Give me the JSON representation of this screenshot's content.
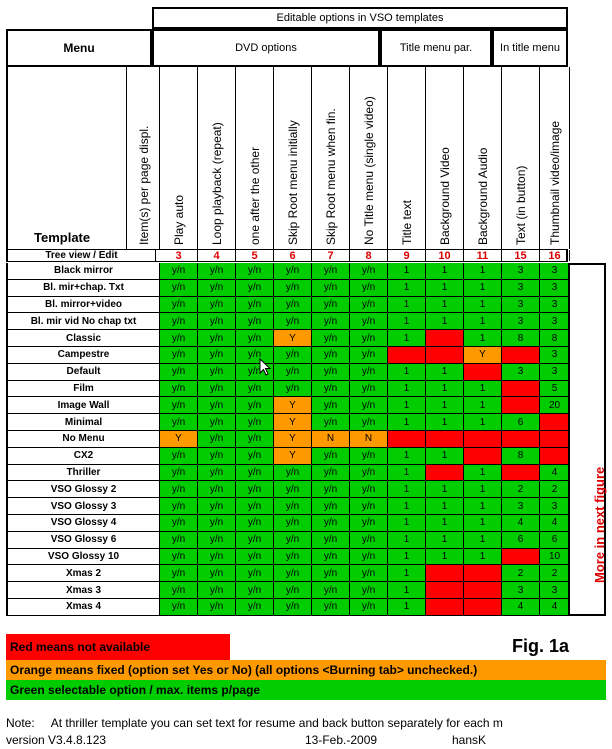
{
  "header": {
    "editable_title": "Editable options in VSO templates",
    "menu_label": "Menu",
    "dvd_options": "DVD options",
    "title_menu_par": "Title menu par.",
    "in_title_menu": "In title menu",
    "template_label": "Template",
    "tree_view_label": "Tree view / Edit",
    "side_note": "More in next figure"
  },
  "columns": [
    {
      "label": "Item(s) per page displ.",
      "num": ""
    },
    {
      "label": "Play auto",
      "num": "3"
    },
    {
      "label": "Loop playback (repeat)",
      "num": "4"
    },
    {
      "label": "one after the other",
      "num": "5"
    },
    {
      "label": "Skip Root menu initially",
      "num": "6"
    },
    {
      "label": "Skip Root menu when fin.",
      "num": "7"
    },
    {
      "label": "No Title menu (single video)",
      "num": "8"
    },
    {
      "label": "Title text",
      "num": "9"
    },
    {
      "label": "Background Video",
      "num": "10"
    },
    {
      "label": "Background Audio",
      "num": "11"
    },
    {
      "label": "Text (in button)",
      "num": "15"
    },
    {
      "label": "Thumbnail video/image",
      "num": "16"
    }
  ],
  "rows": [
    {
      "name": "Black mirror",
      "cells": [
        [
          "g",
          "y/n"
        ],
        [
          "g",
          "y/n"
        ],
        [
          "g",
          "y/n"
        ],
        [
          "g",
          "y/n"
        ],
        [
          "g",
          "y/n"
        ],
        [
          "g",
          "y/n"
        ],
        [
          "g",
          "1"
        ],
        [
          "g",
          "1"
        ],
        [
          "g",
          "1"
        ],
        [
          "g",
          "3"
        ],
        [
          "g",
          "3"
        ]
      ]
    },
    {
      "name": "Bl. mir+chap. Txt",
      "cells": [
        [
          "g",
          "y/n"
        ],
        [
          "g",
          "y/n"
        ],
        [
          "g",
          "y/n"
        ],
        [
          "g",
          "y/n"
        ],
        [
          "g",
          "y/n"
        ],
        [
          "g",
          "y/n"
        ],
        [
          "g",
          "1"
        ],
        [
          "g",
          "1"
        ],
        [
          "g",
          "1"
        ],
        [
          "g",
          "3"
        ],
        [
          "g",
          "3"
        ]
      ]
    },
    {
      "name": "Bl. mirror+video",
      "cells": [
        [
          "g",
          "y/n"
        ],
        [
          "g",
          "y/n"
        ],
        [
          "g",
          "y/n"
        ],
        [
          "g",
          "y/n"
        ],
        [
          "g",
          "y/n"
        ],
        [
          "g",
          "y/n"
        ],
        [
          "g",
          "1"
        ],
        [
          "g",
          "1"
        ],
        [
          "g",
          "1"
        ],
        [
          "g",
          "3"
        ],
        [
          "g",
          "3"
        ]
      ]
    },
    {
      "name": "Bl. mir vid No chap txt",
      "cells": [
        [
          "g",
          "y/n"
        ],
        [
          "g",
          "y/n"
        ],
        [
          "g",
          "y/n"
        ],
        [
          "g",
          "y/n"
        ],
        [
          "g",
          "y/n"
        ],
        [
          "g",
          "y/n"
        ],
        [
          "g",
          "1"
        ],
        [
          "g",
          "1"
        ],
        [
          "g",
          "1"
        ],
        [
          "g",
          "3"
        ],
        [
          "g",
          "3"
        ]
      ]
    },
    {
      "name": "Classic",
      "cells": [
        [
          "g",
          "y/n"
        ],
        [
          "g",
          "y/n"
        ],
        [
          "g",
          "y/n"
        ],
        [
          "o",
          "Y"
        ],
        [
          "g",
          "y/n"
        ],
        [
          "g",
          "y/n"
        ],
        [
          "g",
          "1"
        ],
        [
          "r",
          ""
        ],
        [
          "g",
          "1"
        ],
        [
          "g",
          "8"
        ],
        [
          "g",
          "8"
        ]
      ]
    },
    {
      "name": "Campestre",
      "cells": [
        [
          "g",
          "y/n"
        ],
        [
          "g",
          "y/n"
        ],
        [
          "g",
          "y/n"
        ],
        [
          "g",
          "y/n"
        ],
        [
          "g",
          "y/n"
        ],
        [
          "g",
          "y/n"
        ],
        [
          "r",
          ""
        ],
        [
          "r",
          ""
        ],
        [
          "o",
          "Y"
        ],
        [
          "r",
          ""
        ],
        [
          "g",
          "3"
        ]
      ]
    },
    {
      "name": "Default",
      "cells": [
        [
          "g",
          "y/n"
        ],
        [
          "g",
          "y/n"
        ],
        [
          "g",
          "y/n"
        ],
        [
          "g",
          "y/n"
        ],
        [
          "g",
          "y/n"
        ],
        [
          "g",
          "y/n"
        ],
        [
          "g",
          "1"
        ],
        [
          "g",
          "1"
        ],
        [
          "r",
          ""
        ],
        [
          "g",
          "3"
        ],
        [
          "g",
          "3"
        ]
      ]
    },
    {
      "name": "Film",
      "cells": [
        [
          "g",
          "y/n"
        ],
        [
          "g",
          "y/n"
        ],
        [
          "g",
          "y/n"
        ],
        [
          "g",
          "y/n"
        ],
        [
          "g",
          "y/n"
        ],
        [
          "g",
          "y/n"
        ],
        [
          "g",
          "1"
        ],
        [
          "g",
          "1"
        ],
        [
          "g",
          "1"
        ],
        [
          "r",
          ""
        ],
        [
          "g",
          "5"
        ]
      ]
    },
    {
      "name": "Image Wall",
      "cells": [
        [
          "g",
          "y/n"
        ],
        [
          "g",
          "y/n"
        ],
        [
          "g",
          "y/n"
        ],
        [
          "o",
          "Y"
        ],
        [
          "g",
          "y/n"
        ],
        [
          "g",
          "y/n"
        ],
        [
          "g",
          "1"
        ],
        [
          "g",
          "1"
        ],
        [
          "g",
          "1"
        ],
        [
          "r",
          ""
        ],
        [
          "g",
          "20"
        ]
      ]
    },
    {
      "name": "Minimal",
      "cells": [
        [
          "g",
          "y/n"
        ],
        [
          "g",
          "y/n"
        ],
        [
          "g",
          "y/n"
        ],
        [
          "o",
          "Y"
        ],
        [
          "g",
          "y/n"
        ],
        [
          "g",
          "y/n"
        ],
        [
          "g",
          "1"
        ],
        [
          "g",
          "1"
        ],
        [
          "g",
          "1"
        ],
        [
          "g",
          "6"
        ],
        [
          "r",
          ""
        ]
      ]
    },
    {
      "name": "No Menu",
      "cells": [
        [
          "o",
          "Y"
        ],
        [
          "g",
          "y/n"
        ],
        [
          "g",
          "y/n"
        ],
        [
          "o",
          "Y"
        ],
        [
          "o",
          "N"
        ],
        [
          "o",
          "N"
        ],
        [
          "r",
          ""
        ],
        [
          "r",
          ""
        ],
        [
          "r",
          ""
        ],
        [
          "r",
          ""
        ],
        [
          "r",
          ""
        ]
      ]
    },
    {
      "name": "CX2",
      "cells": [
        [
          "g",
          "y/n"
        ],
        [
          "g",
          "y/n"
        ],
        [
          "g",
          "y/n"
        ],
        [
          "o",
          "Y"
        ],
        [
          "g",
          "y/n"
        ],
        [
          "g",
          "y/n"
        ],
        [
          "g",
          "1"
        ],
        [
          "g",
          "1"
        ],
        [
          "r",
          ""
        ],
        [
          "g",
          "8"
        ],
        [
          "r",
          ""
        ]
      ]
    },
    {
      "name": "Thriller",
      "cells": [
        [
          "g",
          "y/n"
        ],
        [
          "g",
          "y/n"
        ],
        [
          "g",
          "y/n"
        ],
        [
          "g",
          "y/n"
        ],
        [
          "g",
          "y/n"
        ],
        [
          "g",
          "y/n"
        ],
        [
          "g",
          "1"
        ],
        [
          "r",
          ""
        ],
        [
          "g",
          "1"
        ],
        [
          "r",
          ""
        ],
        [
          "g",
          "4"
        ]
      ]
    },
    {
      "name": "VSO Glossy 2",
      "cells": [
        [
          "g",
          "y/n"
        ],
        [
          "g",
          "y/n"
        ],
        [
          "g",
          "y/n"
        ],
        [
          "g",
          "y/n"
        ],
        [
          "g",
          "y/n"
        ],
        [
          "g",
          "y/n"
        ],
        [
          "g",
          "1"
        ],
        [
          "g",
          "1"
        ],
        [
          "g",
          "1"
        ],
        [
          "g",
          "2"
        ],
        [
          "g",
          "2"
        ]
      ]
    },
    {
      "name": "VSO Glossy 3",
      "cells": [
        [
          "g",
          "y/n"
        ],
        [
          "g",
          "y/n"
        ],
        [
          "g",
          "y/n"
        ],
        [
          "g",
          "y/n"
        ],
        [
          "g",
          "y/n"
        ],
        [
          "g",
          "y/n"
        ],
        [
          "g",
          "1"
        ],
        [
          "g",
          "1"
        ],
        [
          "g",
          "1"
        ],
        [
          "g",
          "3"
        ],
        [
          "g",
          "3"
        ]
      ]
    },
    {
      "name": "VSO Glossy 4",
      "cells": [
        [
          "g",
          "y/n"
        ],
        [
          "g",
          "y/n"
        ],
        [
          "g",
          "y/n"
        ],
        [
          "g",
          "y/n"
        ],
        [
          "g",
          "y/n"
        ],
        [
          "g",
          "y/n"
        ],
        [
          "g",
          "1"
        ],
        [
          "g",
          "1"
        ],
        [
          "g",
          "1"
        ],
        [
          "g",
          "4"
        ],
        [
          "g",
          "4"
        ]
      ]
    },
    {
      "name": "VSO Glossy 6",
      "cells": [
        [
          "g",
          "y/n"
        ],
        [
          "g",
          "y/n"
        ],
        [
          "g",
          "y/n"
        ],
        [
          "g",
          "y/n"
        ],
        [
          "g",
          "y/n"
        ],
        [
          "g",
          "y/n"
        ],
        [
          "g",
          "1"
        ],
        [
          "g",
          "1"
        ],
        [
          "g",
          "1"
        ],
        [
          "g",
          "6"
        ],
        [
          "g",
          "6"
        ]
      ]
    },
    {
      "name": "VSO Glossy 10",
      "cells": [
        [
          "g",
          "y/n"
        ],
        [
          "g",
          "y/n"
        ],
        [
          "g",
          "y/n"
        ],
        [
          "g",
          "y/n"
        ],
        [
          "g",
          "y/n"
        ],
        [
          "g",
          "y/n"
        ],
        [
          "g",
          "1"
        ],
        [
          "g",
          "1"
        ],
        [
          "g",
          "1"
        ],
        [
          "r",
          ""
        ],
        [
          "g",
          "10"
        ]
      ]
    },
    {
      "name": "Xmas 2",
      "cells": [
        [
          "g",
          "y/n"
        ],
        [
          "g",
          "y/n"
        ],
        [
          "g",
          "y/n"
        ],
        [
          "g",
          "y/n"
        ],
        [
          "g",
          "y/n"
        ],
        [
          "g",
          "y/n"
        ],
        [
          "g",
          "1"
        ],
        [
          "r",
          ""
        ],
        [
          "r",
          ""
        ],
        [
          "g",
          "2"
        ],
        [
          "g",
          "2"
        ]
      ]
    },
    {
      "name": "Xmas 3",
      "cells": [
        [
          "g",
          "y/n"
        ],
        [
          "g",
          "y/n"
        ],
        [
          "g",
          "y/n"
        ],
        [
          "g",
          "y/n"
        ],
        [
          "g",
          "y/n"
        ],
        [
          "g",
          "y/n"
        ],
        [
          "g",
          "1"
        ],
        [
          "r",
          ""
        ],
        [
          "r",
          ""
        ],
        [
          "g",
          "3"
        ],
        [
          "g",
          "3"
        ]
      ]
    },
    {
      "name": "Xmas 4",
      "cells": [
        [
          "g",
          "y/n"
        ],
        [
          "g",
          "y/n"
        ],
        [
          "g",
          "y/n"
        ],
        [
          "g",
          "y/n"
        ],
        [
          "g",
          "y/n"
        ],
        [
          "g",
          "y/n"
        ],
        [
          "g",
          "1"
        ],
        [
          "r",
          ""
        ],
        [
          "r",
          ""
        ],
        [
          "g",
          "4"
        ],
        [
          "g",
          "4"
        ]
      ]
    }
  ],
  "legend": {
    "red_text": "Red means not available",
    "orange_text": "Orange means fixed (option set Yes or No) (all options <Burning tab> unchecked.)",
    "green_text": "Green selectable option / max. items p/page",
    "fig_label": "Fig. 1a"
  },
  "footer": {
    "note": "Note:     At thriller template you can set text for resume and back button separately for each m",
    "version": "version V3.4.8.123",
    "date": "13-Feb.-2009",
    "author": "hansK"
  },
  "colors": {
    "green": "#00cc00",
    "red": "#ff0000",
    "orange": "#ff9900",
    "number_red": "#dd0000"
  }
}
